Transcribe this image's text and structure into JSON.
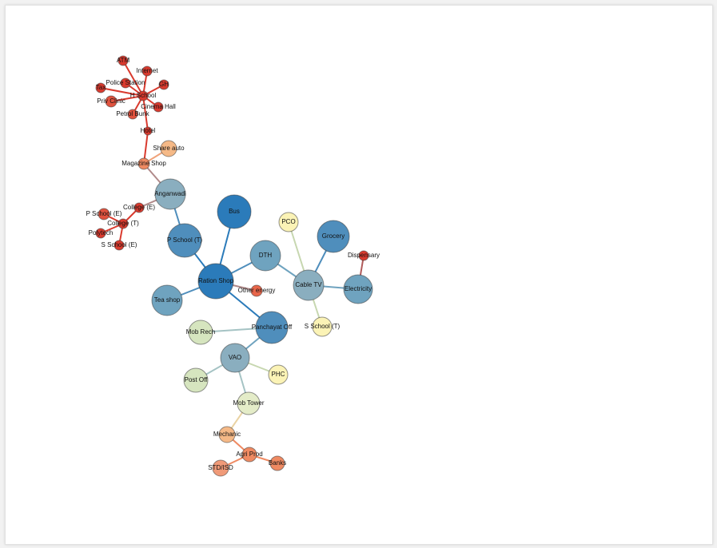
{
  "palette": {
    "dark_blue": "#2b7bba",
    "mid_blue": "#4f8ebc",
    "steel": "#6fa3bf",
    "gray_blue": "#8aaebf",
    "pale_yellow": "#fbf3b6",
    "pale_green": "#d6e5bf",
    "peach": "#f5b987",
    "orange": "#ef8a62",
    "red": "#d93a2e"
  },
  "nodes": [
    {
      "id": "atm",
      "label": "ATM",
      "color": "#d93a2e"
    },
    {
      "id": "internet",
      "label": "Internet",
      "color": "#d93a2e"
    },
    {
      "id": "police",
      "label": "Police Station",
      "color": "#d93a2e"
    },
    {
      "id": "gh",
      "label": "GH",
      "color": "#d93a2e"
    },
    {
      "id": "tax",
      "label": "Tax",
      "color": "#d93a2e"
    },
    {
      "id": "hschool",
      "label": "H School",
      "color": "#d93a2e"
    },
    {
      "id": "privclinic",
      "label": "Priv Clinic",
      "color": "#e0523e"
    },
    {
      "id": "cinema",
      "label": "Cinema Hall",
      "color": "#d93a2e"
    },
    {
      "id": "petrol",
      "label": "Petrol Bunk",
      "color": "#e0523e"
    },
    {
      "id": "hotel",
      "label": "Hotel",
      "color": "#d93a2e"
    },
    {
      "id": "shareauto",
      "label": "Share auto",
      "color": "#f5b987"
    },
    {
      "id": "magazine",
      "label": "Magazine Shop",
      "color": "#ef8a62"
    },
    {
      "id": "anganwadi",
      "label": "Anganwadi",
      "color": "#8aaebf"
    },
    {
      "id": "collegee",
      "label": "College (E)",
      "color": "#d93a2e"
    },
    {
      "id": "pschoole",
      "label": "P School (E)",
      "color": "#e0523e"
    },
    {
      "id": "collegot",
      "label": "College (T)",
      "color": "#d93a2e"
    },
    {
      "id": "polytech",
      "label": "Polytech",
      "color": "#d93a2e"
    },
    {
      "id": "sschoole",
      "label": "S School (E)",
      "color": "#d93a2e"
    },
    {
      "id": "bus",
      "label": "Bus",
      "color": "#2b7bba"
    },
    {
      "id": "pschoolt",
      "label": "P School (T)",
      "color": "#4f8ebc"
    },
    {
      "id": "pco",
      "label": "PCO",
      "color": "#fbf3b6"
    },
    {
      "id": "grocery",
      "label": "Grocery",
      "color": "#4f8ebc"
    },
    {
      "id": "dispensary",
      "label": "Dispensary",
      "color": "#d93a2e"
    },
    {
      "id": "dth",
      "label": "DTH",
      "color": "#6fa3bf"
    },
    {
      "id": "ration",
      "label": "Ration Shop",
      "color": "#2b7bba"
    },
    {
      "id": "otherenergy",
      "label": "Other energy",
      "color": "#e8664a"
    },
    {
      "id": "cabletv",
      "label": "Cable TV",
      "color": "#8aaebf"
    },
    {
      "id": "electricity",
      "label": "Electricity",
      "color": "#6fa3bf"
    },
    {
      "id": "teashop",
      "label": "Tea shop",
      "color": "#6fa3bf"
    },
    {
      "id": "panchayat",
      "label": "Panchayat Off",
      "color": "#4f8ebc"
    },
    {
      "id": "sschoolt",
      "label": "S School (T)",
      "color": "#fbf3b6"
    },
    {
      "id": "mobrech",
      "label": "Mob Rech",
      "color": "#d6e5bf"
    },
    {
      "id": "vao",
      "label": "VAO",
      "color": "#8aaebf"
    },
    {
      "id": "postoff",
      "label": "Post Off",
      "color": "#d6e5bf"
    },
    {
      "id": "phc",
      "label": "PHC",
      "color": "#fbf3b6"
    },
    {
      "id": "mobtower",
      "label": "Mob Tower",
      "color": "#e4ecc8"
    },
    {
      "id": "mechanic",
      "label": "Mechanic",
      "color": "#f5b987"
    },
    {
      "id": "agriprod",
      "label": "Agri Prod",
      "color": "#ef8a62"
    },
    {
      "id": "banks",
      "label": "Banks",
      "color": "#ef8a62"
    },
    {
      "id": "stdisd",
      "label": "STD/ISD",
      "color": "#f09a78"
    }
  ],
  "edges": [
    {
      "from": "hschool",
      "to": "atm",
      "color": "#d93a2e"
    },
    {
      "from": "hschool",
      "to": "internet",
      "color": "#d93a2e"
    },
    {
      "from": "hschool",
      "to": "police",
      "color": "#d93a2e"
    },
    {
      "from": "hschool",
      "to": "gh",
      "color": "#d93a2e"
    },
    {
      "from": "hschool",
      "to": "tax",
      "color": "#d93a2e"
    },
    {
      "from": "hschool",
      "to": "privclinic",
      "color": "#d93a2e"
    },
    {
      "from": "hschool",
      "to": "cinema",
      "color": "#d93a2e"
    },
    {
      "from": "hschool",
      "to": "petrol",
      "color": "#d93a2e"
    },
    {
      "from": "hschool",
      "to": "hotel",
      "color": "#d93a2e"
    },
    {
      "from": "hotel",
      "to": "magazine",
      "color": "#d93a2e"
    },
    {
      "from": "magazine",
      "to": "shareauto",
      "color": "#f0a37a"
    },
    {
      "from": "magazine",
      "to": "anganwadi",
      "color": "#b08a8a"
    },
    {
      "from": "anganwadi",
      "to": "collegee",
      "color": "#b08a8a"
    },
    {
      "from": "collegee",
      "to": "collegot",
      "color": "#d93a2e"
    },
    {
      "from": "collegot",
      "to": "pschoole",
      "color": "#d93a2e"
    },
    {
      "from": "collegot",
      "to": "polytech",
      "color": "#d93a2e"
    },
    {
      "from": "collegot",
      "to": "sschoole",
      "color": "#d93a2e"
    },
    {
      "from": "anganwadi",
      "to": "pschoolt",
      "color": "#4f8ebc"
    },
    {
      "from": "pschoolt",
      "to": "ration",
      "color": "#2b7bba"
    },
    {
      "from": "bus",
      "to": "ration",
      "color": "#2b7bba"
    },
    {
      "from": "ration",
      "to": "dth",
      "color": "#4f8ebc"
    },
    {
      "from": "ration",
      "to": "teashop",
      "color": "#4f8ebc"
    },
    {
      "from": "ration",
      "to": "otherenergy",
      "color": "#b08a8a"
    },
    {
      "from": "ration",
      "to": "panchayat",
      "color": "#2b7bba"
    },
    {
      "from": "dth",
      "to": "cabletv",
      "color": "#6fa3bf"
    },
    {
      "from": "cabletv",
      "to": "pco",
      "color": "#c7d7b0"
    },
    {
      "from": "cabletv",
      "to": "grocery",
      "color": "#4f8ebc"
    },
    {
      "from": "cabletv",
      "to": "electricity",
      "color": "#6fa3bf"
    },
    {
      "from": "cabletv",
      "to": "sschoolt",
      "color": "#c7d7b0"
    },
    {
      "from": "electricity",
      "to": "dispensary",
      "color": "#b05a5a"
    },
    {
      "from": "panchayat",
      "to": "mobrech",
      "color": "#a5c3c4"
    },
    {
      "from": "panchayat",
      "to": "vao",
      "color": "#6fa3bf"
    },
    {
      "from": "vao",
      "to": "postoff",
      "color": "#a5c3c4"
    },
    {
      "from": "vao",
      "to": "phc",
      "color": "#c7d7b0"
    },
    {
      "from": "vao",
      "to": "mobtower",
      "color": "#a5c3c4"
    },
    {
      "from": "mobtower",
      "to": "mechanic",
      "color": "#ead3a3"
    },
    {
      "from": "mechanic",
      "to": "agriprod",
      "color": "#ef8a62"
    },
    {
      "from": "agriprod",
      "to": "banks",
      "color": "#ef8a62"
    },
    {
      "from": "agriprod",
      "to": "stdisd",
      "color": "#ef8a62"
    }
  ]
}
